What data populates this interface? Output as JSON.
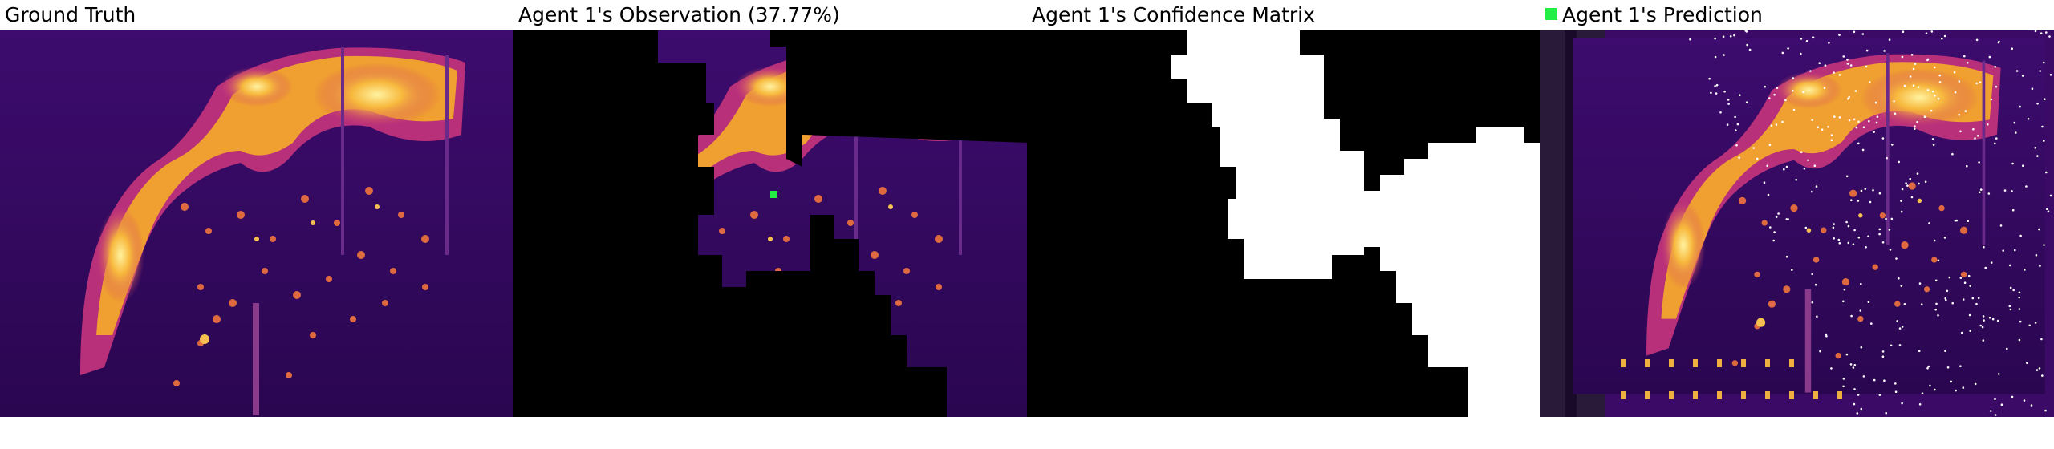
{
  "panels": [
    {
      "title": "Ground Truth"
    },
    {
      "title": "Agent 1's Observation (37.77%)"
    },
    {
      "title": "Agent 1's Confidence Matrix"
    },
    {
      "title": "Agent 1's Prediction",
      "legend_color": "#22ee44"
    }
  ],
  "colors": {
    "background_dark": "#3a0a66",
    "bright": "#f5c04a",
    "accent": "#22ee44"
  }
}
